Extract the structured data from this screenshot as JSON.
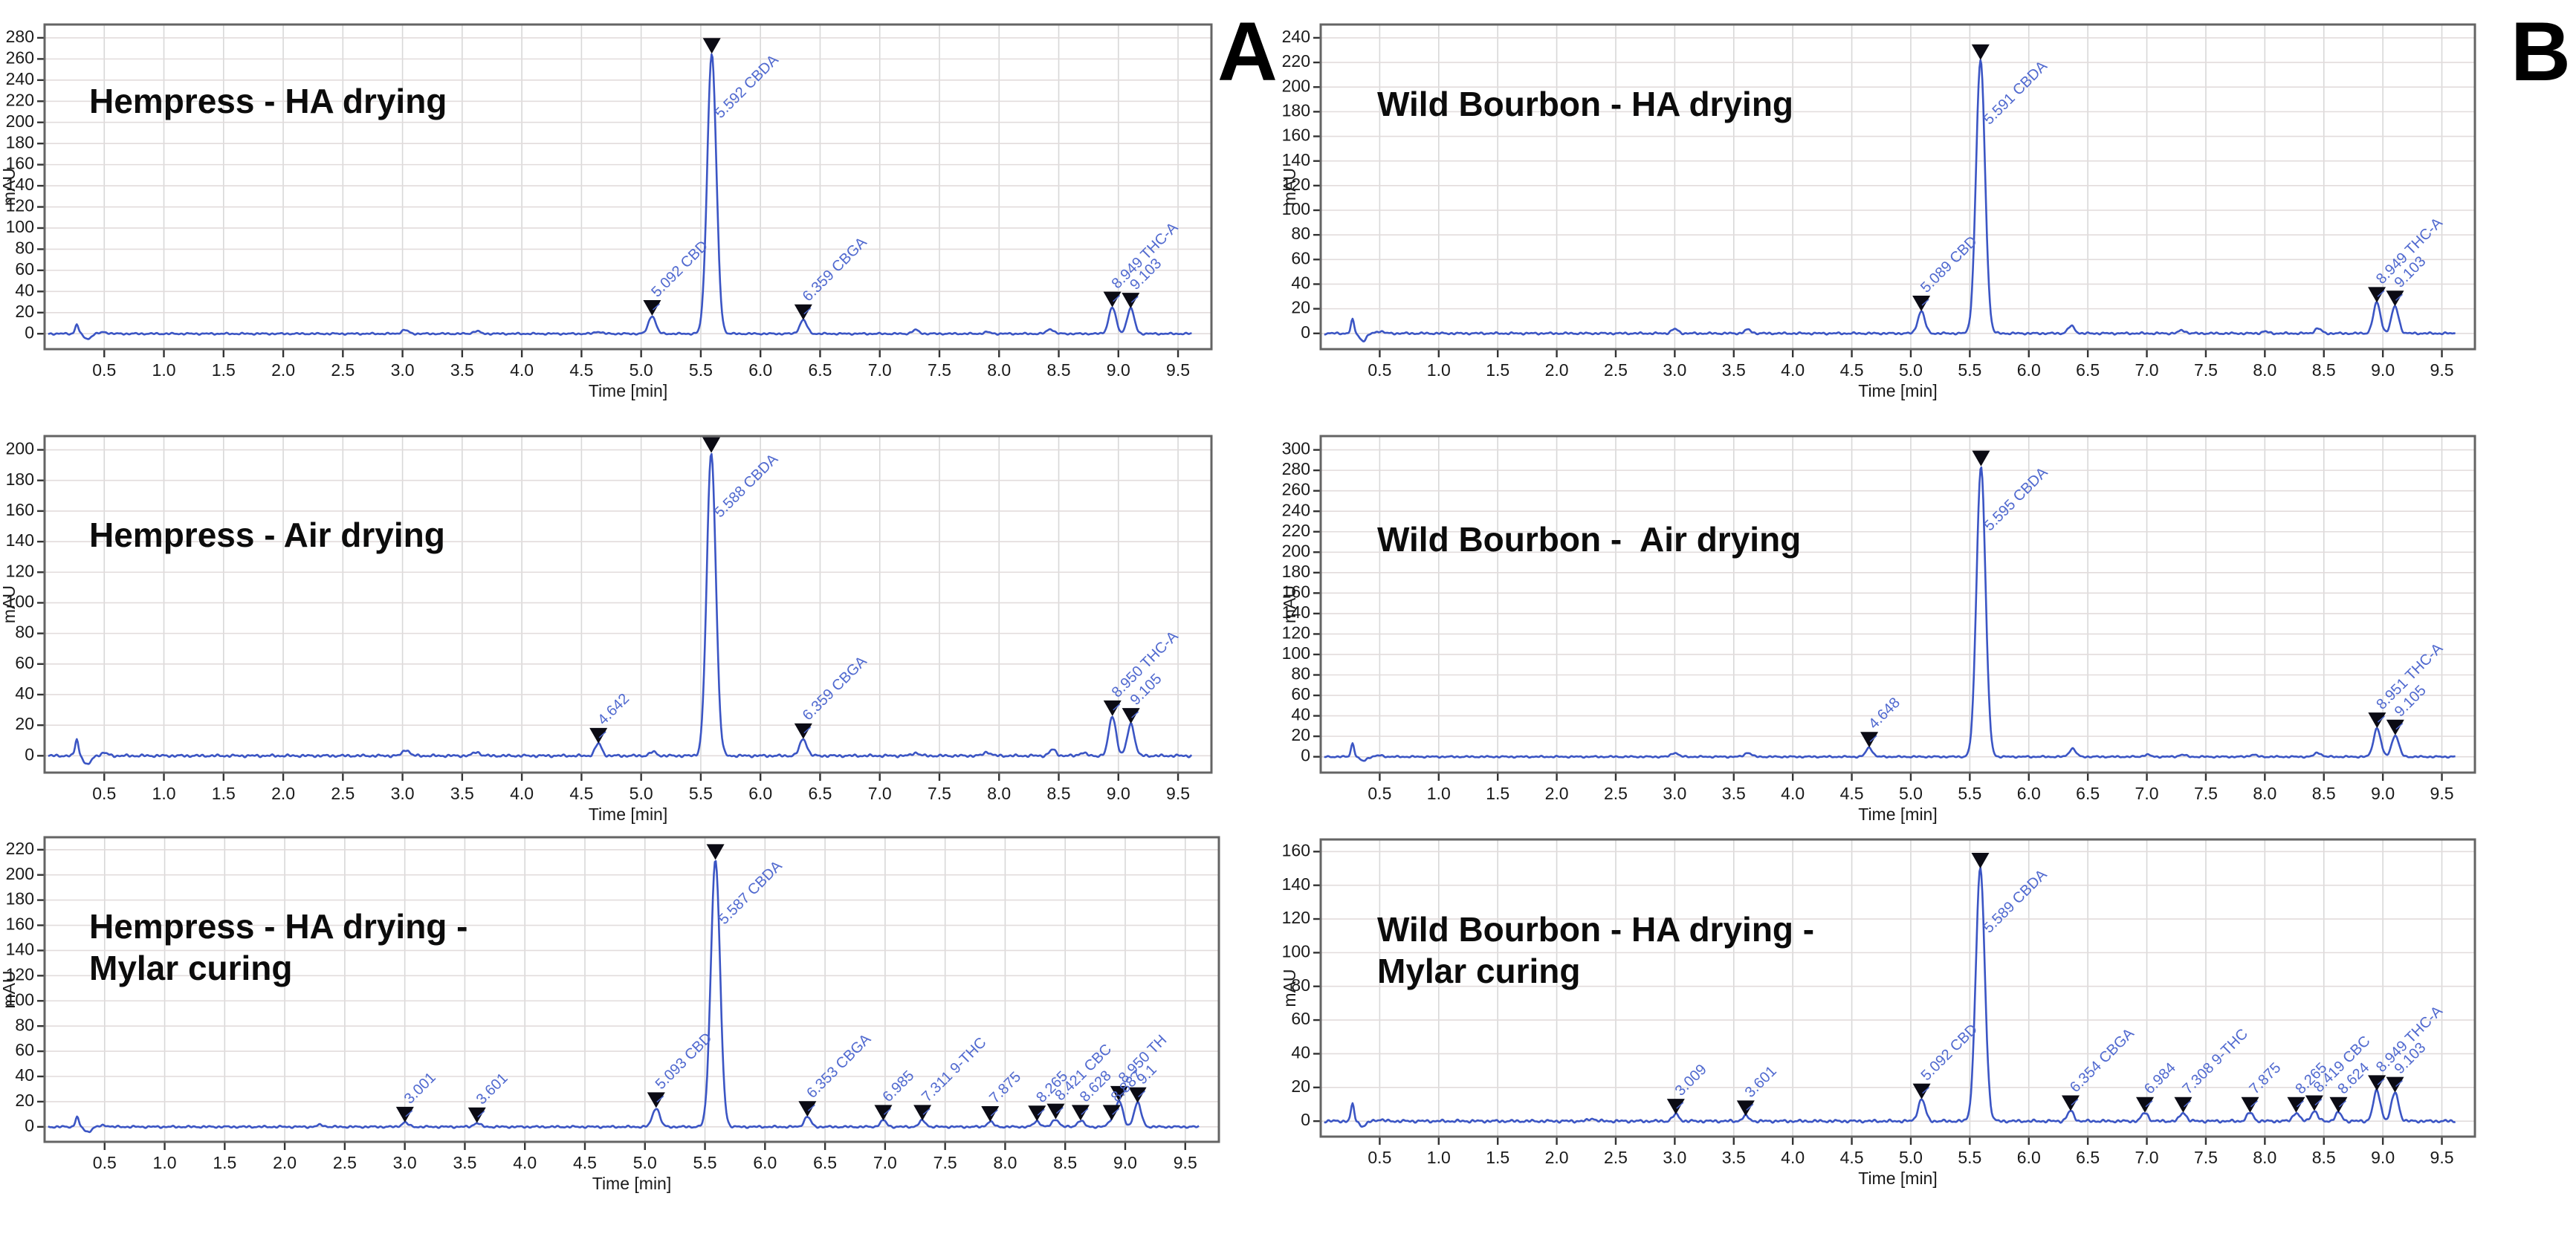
{
  "figure": {
    "panel_letters": [
      "A",
      "B"
    ],
    "colors": {
      "trace": "#3b55c4",
      "peak_label": "#5069cf",
      "marker": "#0b0b14",
      "grid_vertical": "#d8d8d8",
      "grid_horizontal": "#e2dcdc",
      "frame": "#646464",
      "axis_text": "#1a1a1a"
    }
  },
  "chart_data": [
    {
      "type": "line",
      "panel": "A",
      "title": "Hempress - HA drying",
      "xlabel": "Time [min]",
      "ylabel": "mAU",
      "xlim": [
        0,
        9.78
      ],
      "xticks": {
        "start": 0.5,
        "end": 9.5,
        "step": 0.5
      },
      "ylim": [
        0,
        280
      ],
      "ytick_step": 20,
      "grid": true,
      "peaks": [
        {
          "rt": 5.092,
          "mau": 17,
          "label": "5.092 CBD"
        },
        {
          "rt": 5.592,
          "mau": 265,
          "label": "5.592 CBDA"
        },
        {
          "rt": 6.359,
          "mau": 13,
          "label": "6.359 CBGA"
        },
        {
          "rt": 8.949,
          "mau": 25,
          "label": "8.949 THC-A"
        },
        {
          "rt": 9.103,
          "mau": 24,
          "label": "9.103"
        }
      ],
      "minor_bumps": [
        [
          3.02,
          3.5
        ],
        [
          3.62,
          2.5
        ],
        [
          4.64,
          2
        ],
        [
          7.3,
          3.5
        ],
        [
          7.9,
          1.5
        ],
        [
          8.43,
          4.5
        ]
      ],
      "solvent_front_mau": [
        9,
        5
      ]
    },
    {
      "type": "line",
      "panel": "B",
      "title": "Wild Bourbon - HA drying",
      "xlabel": "Time [min]",
      "ylabel": "mAU",
      "xlim": [
        0,
        9.78
      ],
      "xticks": {
        "start": 0.5,
        "end": 9.5,
        "step": 0.5
      },
      "ylim": [
        0,
        240
      ],
      "ytick_step": 20,
      "grid": true,
      "peaks": [
        {
          "rt": 5.089,
          "mau": 18,
          "label": "5.089 CBD"
        },
        {
          "rt": 5.591,
          "mau": 222,
          "label": "5.591 CBDA"
        },
        {
          "rt": 8.949,
          "mau": 25,
          "label": "8.949 THC-A"
        },
        {
          "rt": 9.103,
          "mau": 22,
          "label": "9.103"
        }
      ],
      "minor_bumps": [
        [
          3.0,
          3.5
        ],
        [
          3.62,
          3
        ],
        [
          6.36,
          6
        ],
        [
          7.3,
          2.5
        ],
        [
          8.0,
          1.5
        ],
        [
          8.45,
          4
        ]
      ],
      "solvent_front_mau": [
        11,
        6
      ]
    },
    {
      "type": "line",
      "panel": "A",
      "title": "Hempress - Air drying",
      "xlabel": "Time [min]",
      "ylabel": "mAU",
      "xlim": [
        0,
        9.78
      ],
      "xticks": {
        "start": 0.5,
        "end": 9.5,
        "step": 0.5
      },
      "ylim": [
        0,
        200
      ],
      "ytick_step": 20,
      "grid": true,
      "peaks": [
        {
          "rt": 4.642,
          "mau": 8,
          "label": "4.642"
        },
        {
          "rt": 5.588,
          "mau": 198,
          "label": "5.588 CBDA"
        },
        {
          "rt": 6.359,
          "mau": 11,
          "label": "6.359 CBGA"
        },
        {
          "rt": 8.95,
          "mau": 26,
          "label": "8.950 THC-A"
        },
        {
          "rt": 9.105,
          "mau": 21,
          "label": "9.105"
        }
      ],
      "minor_bumps": [
        [
          3.03,
          4
        ],
        [
          3.62,
          2.5
        ],
        [
          5.1,
          2.5
        ],
        [
          7.3,
          2
        ],
        [
          7.9,
          2.5
        ],
        [
          8.45,
          4
        ],
        [
          8.7,
          2
        ]
      ],
      "solvent_front_mau": [
        11,
        6
      ]
    },
    {
      "type": "line",
      "panel": "B",
      "title": "Wild Bourbon -  Air drying",
      "xlabel": "Time [min]",
      "ylabel": "mAU",
      "xlim": [
        0,
        9.78
      ],
      "xticks": {
        "start": 0.5,
        "end": 9.5,
        "step": 0.5
      },
      "ylim": [
        0,
        300
      ],
      "ytick_step": 20,
      "grid": true,
      "peaks": [
        {
          "rt": 4.648,
          "mau": 9,
          "label": "4.648"
        },
        {
          "rt": 5.595,
          "mau": 284,
          "label": "5.595 CBDA"
        },
        {
          "rt": 8.951,
          "mau": 28,
          "label": "8.951 THC-A"
        },
        {
          "rt": 9.105,
          "mau": 21,
          "label": "9.105"
        }
      ],
      "minor_bumps": [
        [
          3.0,
          4
        ],
        [
          3.62,
          4
        ],
        [
          6.37,
          8
        ],
        [
          7.0,
          2
        ],
        [
          7.3,
          2
        ],
        [
          7.9,
          2
        ],
        [
          8.45,
          4
        ]
      ],
      "solvent_front_mau": [
        13,
        4
      ]
    },
    {
      "type": "line",
      "panel": "A",
      "title": "Hempress - HA drying -\nMylar curing",
      "xlabel": "Time [min]",
      "ylabel": "mAU",
      "xlim": [
        0,
        9.78
      ],
      "xticks": {
        "start": 0.5,
        "end": 9.5,
        "step": 0.5
      },
      "ylim": [
        0,
        220
      ],
      "ytick_step": 20,
      "grid": true,
      "peaks": [
        {
          "rt": 3.001,
          "mau": 3.5,
          "label": "3.001"
        },
        {
          "rt": 3.601,
          "mau": 3,
          "label": "3.601"
        },
        {
          "rt": 5.093,
          "mau": 15,
          "label": "5.093 CBD"
        },
        {
          "rt": 5.587,
          "mau": 212,
          "label": "5.587 CBDA"
        },
        {
          "rt": 6.353,
          "mau": 8,
          "label": "6.353 CBGA"
        },
        {
          "rt": 6.985,
          "mau": 5,
          "label": "6.985"
        },
        {
          "rt": 7.311,
          "mau": 5,
          "label": "7.311 9-THC"
        },
        {
          "rt": 7.875,
          "mau": 4,
          "label": "7.875"
        },
        {
          "rt": 8.265,
          "mau": 4.5,
          "label": "8.265"
        },
        {
          "rt": 8.421,
          "mau": 6,
          "label": "8.421 CBC"
        },
        {
          "rt": 8.628,
          "mau": 5,
          "label": "8.628"
        },
        {
          "rt": 8.887,
          "mau": 5,
          "label": "8.887"
        },
        {
          "rt": 8.95,
          "mau": 20,
          "label": "8.950 TH"
        },
        {
          "rt": 9.103,
          "mau": 19,
          "label": "9.1"
        }
      ],
      "minor_bumps": [
        [
          2.3,
          1.5
        ]
      ],
      "solvent_front_mau": [
        8,
        4
      ]
    },
    {
      "type": "line",
      "panel": "B",
      "title": "Wild Bourbon - HA drying -\nMylar curing",
      "xlabel": "Time [min]",
      "ylabel": "mAU",
      "xlim": [
        0,
        9.78
      ],
      "xticks": {
        "start": 0.5,
        "end": 9.5,
        "step": 0.5
      },
      "ylim": [
        0,
        160
      ],
      "ytick_step": 20,
      "grid": true,
      "peaks": [
        {
          "rt": 3.009,
          "mau": 4,
          "label": "3.009"
        },
        {
          "rt": 3.601,
          "mau": 3,
          "label": "3.601"
        },
        {
          "rt": 5.092,
          "mau": 13,
          "label": "5.092 CBD"
        },
        {
          "rt": 5.589,
          "mau": 150,
          "label": "5.589 CBDA"
        },
        {
          "rt": 6.354,
          "mau": 6,
          "label": "6.354 CBGA"
        },
        {
          "rt": 6.984,
          "mau": 5,
          "label": "6.984"
        },
        {
          "rt": 7.308,
          "mau": 5,
          "label": "7.308 9-THC"
        },
        {
          "rt": 7.875,
          "mau": 5,
          "label": "7.875"
        },
        {
          "rt": 8.265,
          "mau": 5,
          "label": "8.265"
        },
        {
          "rt": 8.419,
          "mau": 6,
          "label": "8.419 CBC"
        },
        {
          "rt": 8.624,
          "mau": 5,
          "label": "8.624"
        },
        {
          "rt": 8.949,
          "mau": 18,
          "label": "8.949 THC-A"
        },
        {
          "rt": 9.103,
          "mau": 17,
          "label": "9.103"
        }
      ],
      "minor_bumps": [
        [
          2.3,
          1.5
        ]
      ],
      "solvent_front_mau": [
        10,
        3
      ]
    }
  ]
}
